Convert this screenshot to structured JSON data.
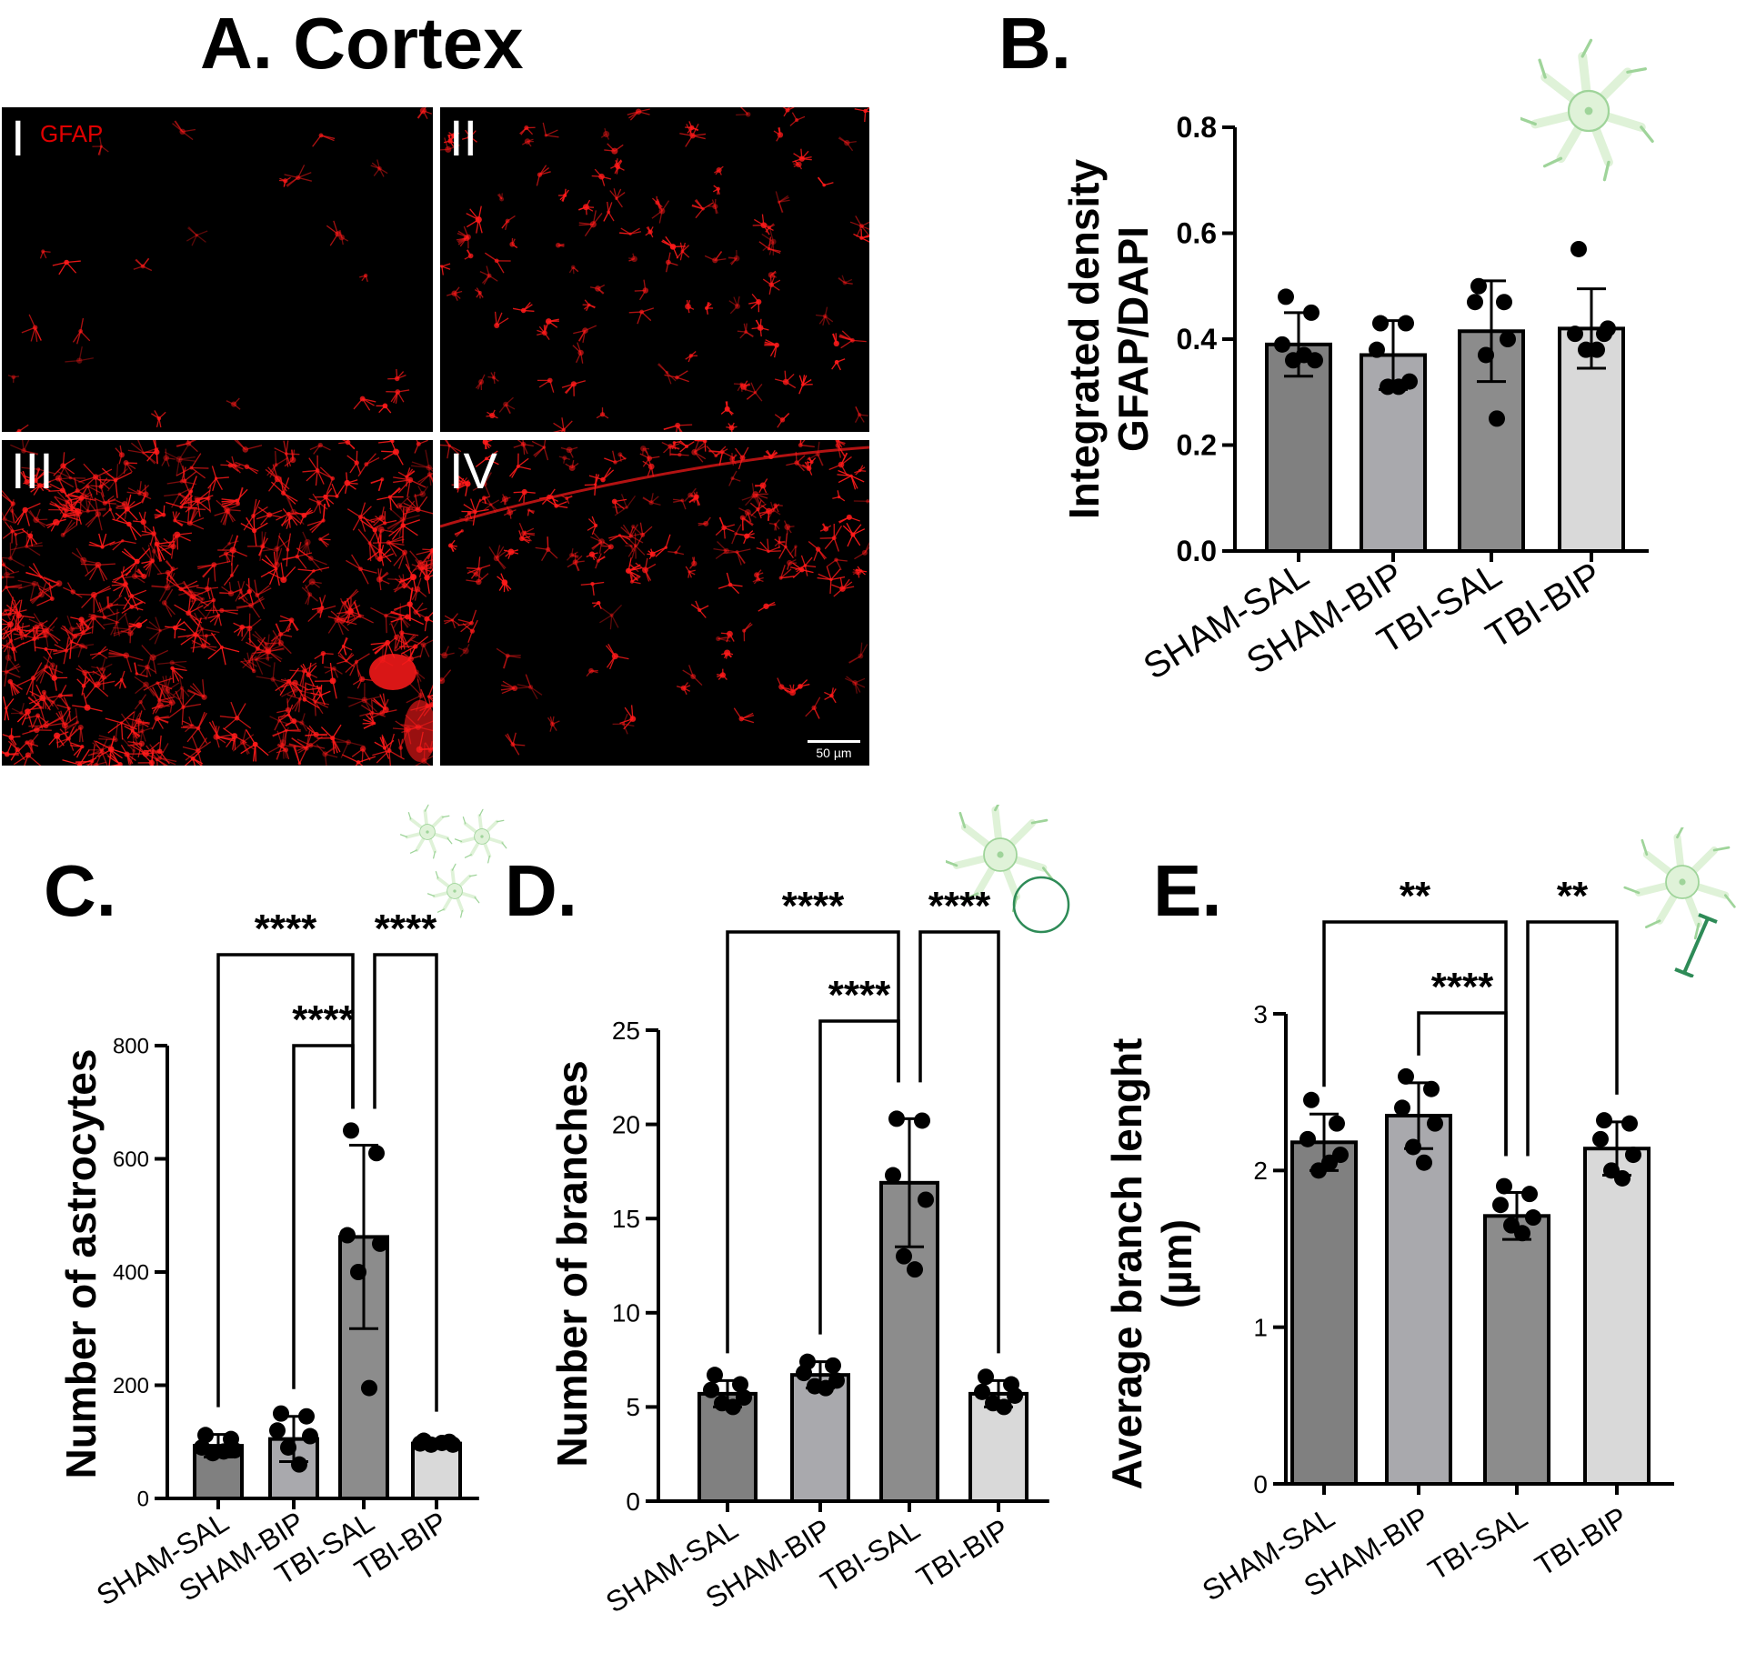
{
  "panels": {
    "a_title": "A. Cortex",
    "b_title": "B.",
    "c_title": "C.",
    "d_title": "D.",
    "e_title": "E."
  },
  "micrographs": [
    {
      "label": "I",
      "stain": "GFAP",
      "intensity": "low"
    },
    {
      "label": "II",
      "stain": "",
      "intensity": "low-medium"
    },
    {
      "label": "III",
      "stain": "",
      "intensity": "high"
    },
    {
      "label": "IV",
      "stain": "",
      "intensity": "medium",
      "scale_bar": "50 µm"
    }
  ],
  "colors": {
    "SHAM-SAL": "#808080",
    "SHAM-BIP": "#a9a9ad",
    "TBI-SAL": "#8c8c8c",
    "TBI-BIP": "#d9d9d9",
    "stain_red": "#ff1a1a",
    "icon_green": "#dff2d8",
    "icon_stroke": "#9fd49a",
    "icon_dark_green": "#2e8b57"
  },
  "chart_data": [
    {
      "id": "B",
      "type": "bar",
      "title": "",
      "categories": [
        "SHAM-SAL",
        "SHAM-BIP",
        "TBI-SAL",
        "TBI-BIP"
      ],
      "ylabel": [
        "Integrated density",
        "GFAP/DAPI"
      ],
      "ylim": [
        0,
        0.8
      ],
      "yticks": [
        0.0,
        0.2,
        0.4,
        0.6,
        0.8
      ],
      "ytick_labels": [
        "0.0",
        "0.2",
        "0.4",
        "0.6",
        "0.8"
      ],
      "values": [
        0.39,
        0.37,
        0.415,
        0.42
      ],
      "sd": [
        0.06,
        0.065,
        0.095,
        0.075
      ],
      "points": [
        [
          0.48,
          0.45,
          0.39,
          0.36,
          0.36,
          0.37
        ],
        [
          0.43,
          0.43,
          0.38,
          0.32,
          0.31,
          0.31
        ],
        [
          0.5,
          0.47,
          0.47,
          0.4,
          0.37,
          0.25
        ],
        [
          0.57,
          0.41,
          0.41,
          0.42,
          0.38,
          0.38
        ]
      ],
      "comparisons": [],
      "grid": false,
      "icon": "astrocyte-icon"
    },
    {
      "id": "C",
      "type": "bar",
      "title": "",
      "categories": [
        "SHAM-SAL",
        "SHAM-BIP",
        "TBI-SAL",
        "TBI-BIP"
      ],
      "ylabel": [
        "Number of astrocytes"
      ],
      "ylim": [
        0,
        800
      ],
      "yticks": [
        0,
        200,
        400,
        600,
        800
      ],
      "ytick_labels": [
        "0",
        "200",
        "400",
        "600",
        "800"
      ],
      "values": [
        93,
        105,
        462,
        97
      ],
      "sd": [
        20,
        40,
        162,
        8
      ],
      "points": [
        [
          112,
          105,
          90,
          85,
          80,
          83
        ],
        [
          150,
          145,
          120,
          110,
          90,
          60
        ],
        [
          650,
          610,
          465,
          450,
          400,
          195
        ],
        [
          102,
          100,
          97,
          95,
          95,
          98
        ]
      ],
      "comparisons": [
        {
          "from": 0,
          "to": 2,
          "label": "****"
        },
        {
          "from": 2,
          "to": 3,
          "label": "****"
        },
        {
          "from": 1,
          "to": 2,
          "label": "****"
        }
      ],
      "grid": false,
      "icon": "astrocyte-cluster-icon"
    },
    {
      "id": "D",
      "type": "bar",
      "title": "",
      "categories": [
        "SHAM-SAL",
        "SHAM-BIP",
        "TBI-SAL",
        "TBI-BIP"
      ],
      "ylabel": [
        "Number of branches"
      ],
      "ylim": [
        0,
        25
      ],
      "yticks": [
        0,
        5,
        10,
        15,
        20,
        25
      ],
      "ytick_labels": [
        "0",
        "5",
        "10",
        "15",
        "20",
        "25"
      ],
      "values": [
        5.7,
        6.7,
        16.9,
        5.7
      ],
      "sd": [
        0.7,
        0.7,
        3.4,
        0.7
      ],
      "points": [
        [
          6.7,
          6.2,
          5.9,
          5.5,
          5.2,
          5.0
        ],
        [
          7.4,
          7.2,
          6.8,
          6.4,
          6.1,
          6.0
        ],
        [
          20.3,
          20.2,
          17.3,
          16.0,
          13.0,
          12.3
        ],
        [
          6.6,
          6.2,
          5.8,
          5.6,
          5.2,
          5.0
        ]
      ],
      "comparisons": [
        {
          "from": 0,
          "to": 2,
          "label": "****"
        },
        {
          "from": 2,
          "to": 3,
          "label": "****"
        },
        {
          "from": 1,
          "to": 2,
          "label": "****"
        }
      ],
      "grid": false,
      "icon": "astrocyte-branches-icon"
    },
    {
      "id": "E",
      "type": "bar",
      "title": "",
      "categories": [
        "SHAM-SAL",
        "SHAM-BIP",
        "TBI-SAL",
        "TBI-BIP"
      ],
      "ylabel": [
        "Average branch lenght",
        "(µm)"
      ],
      "ylim": [
        0,
        3
      ],
      "yticks": [
        0,
        1,
        2,
        3
      ],
      "ytick_labels": [
        "0",
        "1",
        "2",
        "3"
      ],
      "values": [
        2.18,
        2.35,
        1.71,
        2.14
      ],
      "sd": [
        0.18,
        0.21,
        0.15,
        0.17
      ],
      "points": [
        [
          2.45,
          2.3,
          2.2,
          2.1,
          2.0,
          2.05
        ],
        [
          2.6,
          2.52,
          2.4,
          2.3,
          2.15,
          2.05
        ],
        [
          1.9,
          1.85,
          1.78,
          1.7,
          1.65,
          1.6
        ],
        [
          2.32,
          2.3,
          2.2,
          2.1,
          2.0,
          1.95
        ]
      ],
      "comparisons": [
        {
          "from": 0,
          "to": 2,
          "label": "**"
        },
        {
          "from": 2,
          "to": 3,
          "label": "**"
        },
        {
          "from": 1,
          "to": 2,
          "label": "****"
        }
      ],
      "grid": false,
      "icon": "branch-length-icon"
    }
  ]
}
